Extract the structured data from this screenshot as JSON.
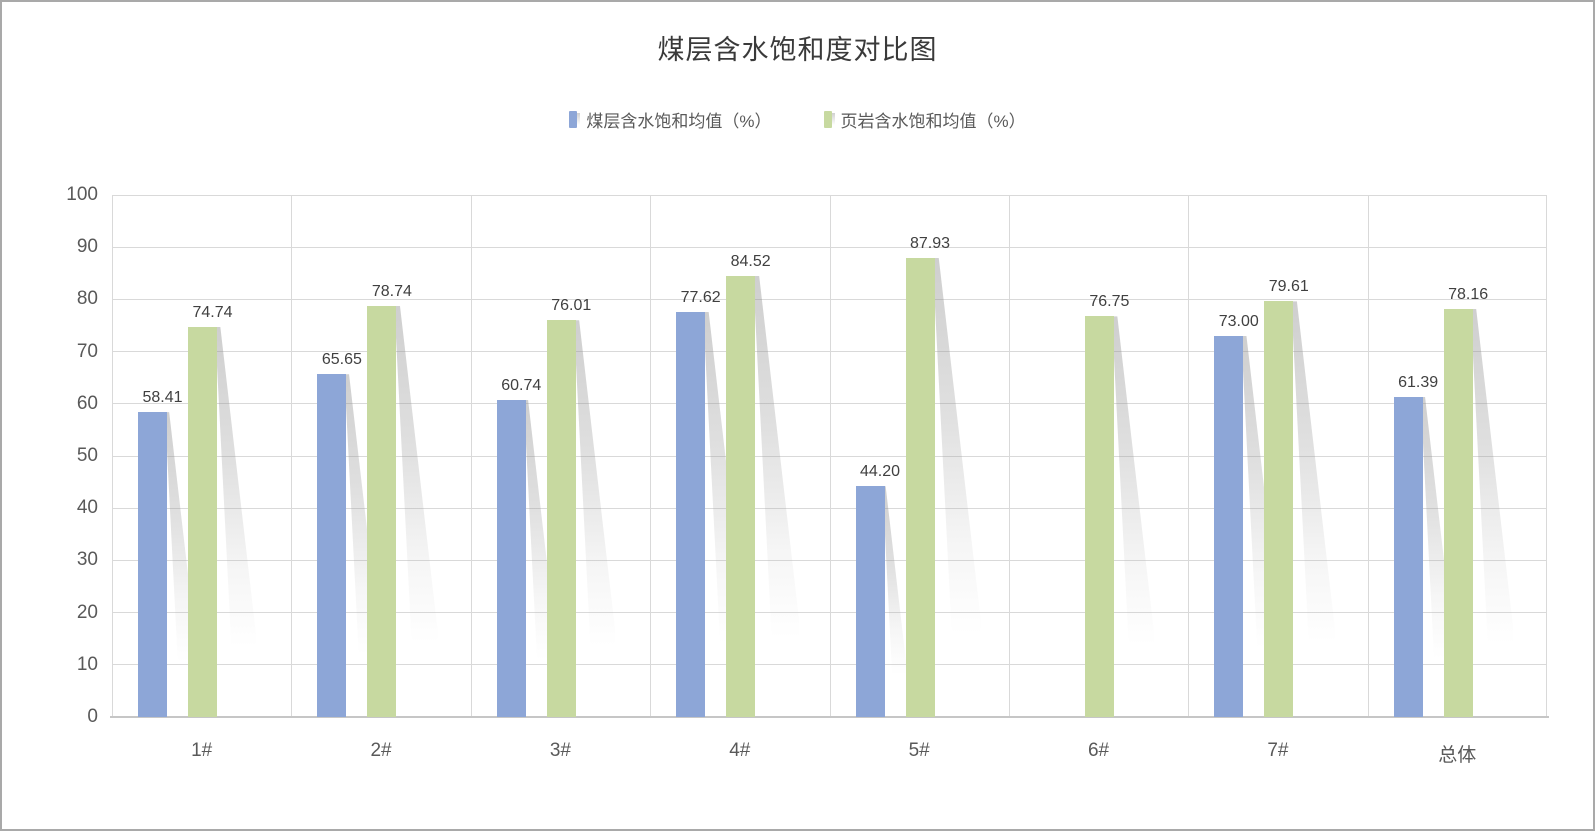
{
  "title": "煤层含水饱和度对比图",
  "colors": {
    "series_coal": "#8DA6D7",
    "series_shale": "#C7D9A0",
    "gridline": "#d9d9d9",
    "axis_line": "#c6c6c6",
    "tick_text": "#595959",
    "value_text": "#404040",
    "title_text": "#3a3a3a",
    "frame_border": "#a9a9a9",
    "shadow": "#8c8c8c"
  },
  "chart_data": {
    "type": "bar",
    "title": "煤层含水饱和度对比图",
    "categories": [
      "1#",
      "2#",
      "3#",
      "4#",
      "5#",
      "6#",
      "7#",
      "总体"
    ],
    "series": [
      {
        "name": "煤层含水饱和均值（%）",
        "color": "#8DA6D7",
        "values": [
          58.41,
          65.65,
          60.74,
          77.62,
          44.2,
          null,
          73.0,
          61.39
        ]
      },
      {
        "name": "页岩含水饱和均值（%）",
        "color": "#C7D9A0",
        "values": [
          74.74,
          78.74,
          76.01,
          84.52,
          87.93,
          76.75,
          79.61,
          78.16
        ]
      }
    ],
    "xlabel": "",
    "ylabel": "",
    "ylim": [
      0,
      100
    ],
    "ytick_step": 10,
    "y_tick_labels": [
      "0",
      "10",
      "20",
      "30",
      "40",
      "50",
      "60",
      "70",
      "80",
      "90",
      "100"
    ],
    "grid": true,
    "legend_position": "top",
    "value_labels": "outside-end, two decimals",
    "bar_effect": "gray perspective shadow slanting down-right"
  }
}
